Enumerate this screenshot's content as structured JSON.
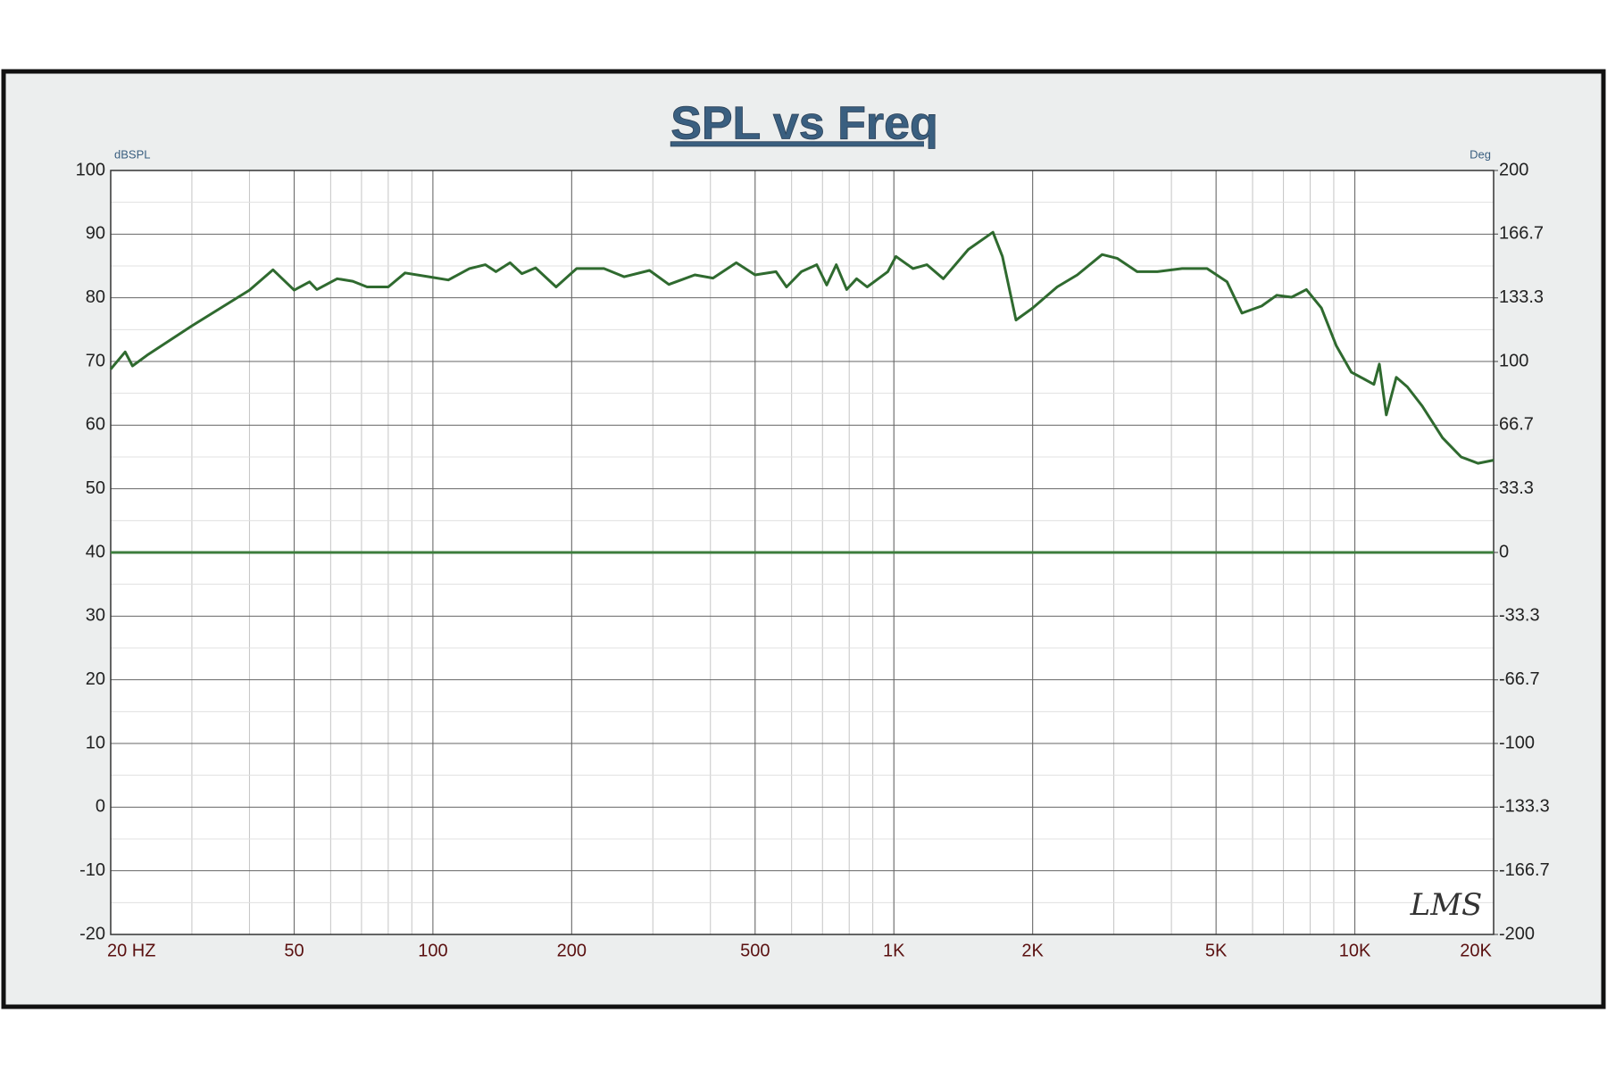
{
  "chart_data": {
    "type": "line",
    "title": "SPL vs Freq",
    "y_label": "dBSPL",
    "y2_label": "Deg",
    "annotation": "LMS",
    "log_x": true,
    "grid": true,
    "xlim": [
      20,
      20000
    ],
    "ylim": [
      -20,
      100
    ],
    "y2lim": [
      -200,
      200
    ],
    "xticks": [
      {
        "value": 20,
        "label": "20 HZ"
      },
      50,
      100,
      200,
      500,
      {
        "value": 1000,
        "label": "1K"
      },
      {
        "value": 2000,
        "label": "2K"
      },
      {
        "value": 5000,
        "label": "5K"
      },
      {
        "value": 10000,
        "label": "10K"
      },
      {
        "value": 20000,
        "label": "20K"
      }
    ],
    "yticks": [
      -20,
      -10,
      0,
      10,
      20,
      30,
      40,
      50,
      60,
      70,
      80,
      90,
      100
    ],
    "y2ticks": [
      -200,
      -166.7,
      -133.3,
      -100,
      -66.7,
      -33.3,
      0,
      33.3,
      66.7,
      100,
      133.3,
      166.7,
      200
    ],
    "series": [
      {
        "color": "#2f6a2f",
        "x": [
          20,
          21.5,
          22.3,
          24,
          30,
          40,
          45,
          50,
          54,
          56,
          62,
          67,
          72,
          80,
          87,
          98,
          108,
          120,
          130,
          137,
          147,
          156,
          167,
          185,
          205,
          235,
          260,
          295,
          325,
          370,
          405,
          455,
          500,
          555,
          585,
          630,
          680,
          715,
          750,
          790,
          830,
          875,
          970,
          1010,
          1100,
          1180,
          1280,
          1450,
          1640,
          1720,
          1840,
          2000,
          2260,
          2500,
          2830,
          3050,
          3370,
          3730,
          4220,
          4780,
          5280,
          5690,
          6280,
          6770,
          7290,
          7850,
          8460,
          9110,
          9830,
          10500,
          11000,
          11300,
          11700,
          12300,
          13000,
          14000,
          15500,
          17000,
          18500,
          20000
        ],
        "values": [
          68.8,
          71.5,
          69.3,
          71,
          75.6,
          81.2,
          84.4,
          81.2,
          82.5,
          81.3,
          83,
          82.6,
          81.7,
          81.7,
          83.9,
          83.3,
          82.8,
          84.6,
          85.2,
          84.1,
          85.5,
          83.8,
          84.7,
          81.7,
          84.6,
          84.6,
          83.3,
          84.3,
          82.1,
          83.6,
          83.1,
          85.5,
          83.6,
          84.1,
          81.7,
          84.1,
          85.2,
          82,
          85.2,
          81.3,
          83,
          81.7,
          84.1,
          86.5,
          84.6,
          85.2,
          83,
          87.6,
          90.3,
          86.5,
          76.5,
          78.4,
          81.7,
          83.6,
          86.8,
          86.2,
          84.1,
          84.1,
          84.6,
          84.6,
          82.5,
          77.6,
          78.7,
          80.4,
          80.1,
          81.3,
          78.4,
          72.5,
          68.3,
          67.2,
          66.4,
          69.6,
          61.6,
          67.5,
          66,
          63,
          58,
          55,
          54,
          54.5
        ]
      },
      {
        "color": "#3d7d3d",
        "axis": "y2",
        "x": [
          20,
          20000
        ],
        "values": [
          0,
          0
        ]
      }
    ]
  }
}
